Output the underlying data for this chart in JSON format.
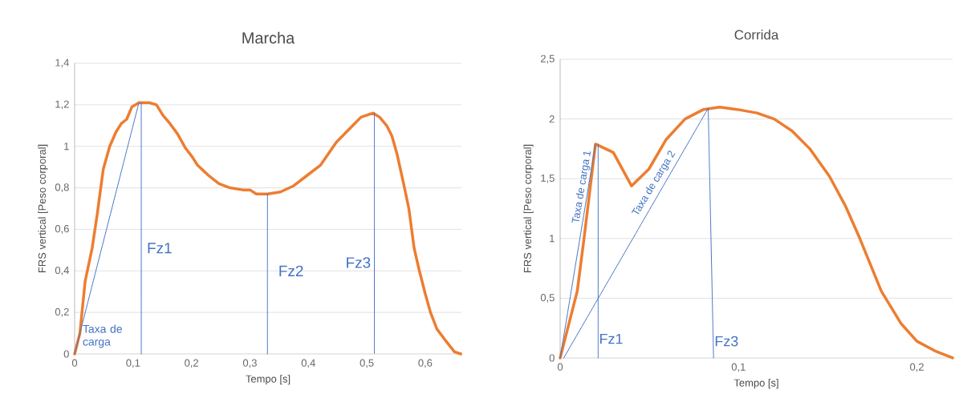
{
  "chart_data": [
    {
      "type": "line",
      "title": "Marcha",
      "xlabel": "Tempo [s]",
      "ylabel": "FRS vertical [Peso corporal]",
      "grid": "y",
      "xlim": [
        0,
        0.662
      ],
      "ylim": [
        0,
        1.4
      ],
      "xticks": [
        0,
        {
          "value": 0.1,
          "label": "0,1"
        },
        {
          "value": 0.2,
          "label": "0,2"
        },
        {
          "value": 0.3,
          "label": "0,3"
        },
        {
          "value": 0.4,
          "label": "0,4"
        },
        {
          "value": 0.5,
          "label": "0,5"
        },
        {
          "value": 0.6,
          "label": "0,6"
        }
      ],
      "yticks": [
        0,
        {
          "value": 0.2,
          "label": "0,2"
        },
        {
          "value": 0.4,
          "label": "0,4"
        },
        {
          "value": 0.6,
          "label": "0,6"
        },
        {
          "value": 0.8,
          "label": "0,8"
        },
        1,
        {
          "value": 1.2,
          "label": "1,2"
        },
        {
          "value": 1.4,
          "label": "1,4"
        }
      ],
      "series": [
        {
          "color": "#ed7d31",
          "x": [
            0,
            0.009,
            0.018,
            0.03,
            0.039,
            0.049,
            0.06,
            0.071,
            0.08,
            0.089,
            0.098,
            0.11,
            0.128,
            0.14,
            0.151,
            0.163,
            0.176,
            0.19,
            0.201,
            0.21,
            0.229,
            0.247,
            0.266,
            0.288,
            0.3,
            0.311,
            0.33,
            0.352,
            0.375,
            0.398,
            0.421,
            0.448,
            0.476,
            0.49,
            0.511,
            0.522,
            0.534,
            0.543,
            0.552,
            0.563,
            0.572,
            0.581,
            0.59,
            0.6,
            0.609,
            0.62,
            0.636,
            0.65,
            0.661
          ],
          "values": [
            0,
            0.1,
            0.35,
            0.51,
            0.68,
            0.89,
            1.0,
            1.07,
            1.11,
            1.13,
            1.19,
            1.21,
            1.21,
            1.2,
            1.15,
            1.11,
            1.06,
            0.99,
            0.95,
            0.91,
            0.86,
            0.82,
            0.8,
            0.79,
            0.79,
            0.77,
            0.77,
            0.78,
            0.81,
            0.86,
            0.91,
            1.02,
            1.1,
            1.14,
            1.16,
            1.14,
            1.1,
            1.05,
            0.96,
            0.82,
            0.7,
            0.51,
            0.4,
            0.29,
            0.2,
            0.12,
            0.06,
            0.01,
            0
          ]
        },
        {
          "color": "#4472c4",
          "line_style": "dashed",
          "x": [
            0,
            0.11
          ],
          "values": [
            0,
            1.21
          ]
        },
        {
          "color": "#4472c4",
          "line_style": "dotted",
          "x": [
            0.114,
            0.114
          ],
          "values": [
            1.21,
            0
          ]
        },
        {
          "color": "#4472c4",
          "line_style": "dotted",
          "x": [
            0.33,
            0.33
          ],
          "values": [
            0.77,
            0
          ]
        },
        {
          "color": "#4472c4",
          "line_style": "dotted",
          "x": [
            0.513,
            0.513
          ],
          "values": [
            1.16,
            0
          ]
        }
      ],
      "annotations": [
        "Taxa de carga",
        "Fz1",
        "Fz2",
        "Fz3"
      ]
    },
    {
      "type": "line",
      "title": "Corrida",
      "xlabel": "Tempo [s]",
      "ylabel": "FRS vertical [Peso corporal]",
      "grid": "y",
      "xlim": [
        0,
        0.22
      ],
      "ylim": [
        0,
        2.5
      ],
      "xticks": [
        0,
        {
          "value": 0.1,
          "label": "0,1"
        },
        {
          "value": 0.2,
          "label": "0,2"
        }
      ],
      "yticks": [
        0,
        {
          "value": 0.5,
          "label": "0,5"
        },
        1,
        {
          "value": 1.5,
          "label": "1,5"
        },
        2,
        {
          "value": 2.5,
          "label": "2,5"
        }
      ],
      "series": [
        {
          "color": "#ed7d31",
          "x": [
            0,
            0.0096,
            0.0133,
            0.0198,
            0.0298,
            0.04,
            0.0497,
            0.0595,
            0.07,
            0.0804,
            0.0894,
            0.0992,
            0.1104,
            0.12,
            0.13,
            0.14,
            0.151,
            0.16,
            0.168,
            0.18,
            0.191,
            0.2,
            0.21,
            0.22
          ],
          "values": [
            0,
            0.56,
            0.99,
            1.79,
            1.72,
            1.44,
            1.58,
            1.83,
            2.0,
            2.08,
            2.1,
            2.08,
            2.05,
            2.0,
            1.9,
            1.75,
            1.52,
            1.27,
            1.0,
            0.56,
            0.29,
            0.14,
            0.06,
            0
          ]
        },
        {
          "color": "#4472c4",
          "line_style": "dashed",
          "x": [
            0,
            0.0198
          ],
          "values": [
            0,
            1.79
          ]
        },
        {
          "color": "#4472c4",
          "line_style": "dashed",
          "x": [
            0.002,
            0.083
          ],
          "values": [
            0,
            2.09
          ]
        },
        {
          "color": "#4472c4",
          "line_style": "dotted",
          "x": [
            0.0213,
            0.0213
          ],
          "values": [
            1.79,
            0
          ]
        },
        {
          "color": "#4472c4",
          "line_style": "dotted",
          "x": [
            0.083,
            0.086
          ],
          "values": [
            2.09,
            0
          ]
        }
      ],
      "annotations": [
        "Taxa de carga 1",
        "Taxa de carga 2",
        "Fz1",
        "Fz3"
      ]
    }
  ]
}
